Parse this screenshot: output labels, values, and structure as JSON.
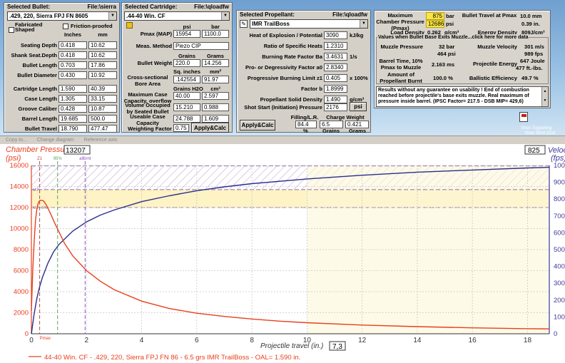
{
  "bullet": {
    "header": "Selected Bullet:",
    "file": "File:\\sierra",
    "selected": ".429, 220, Sierra FPJ FN 8605",
    "cb_fabricated": "Fabricated Shaped",
    "cb_friction": "Friction-proofed",
    "col_inches": "Inches",
    "col_mm": "mm",
    "rows": [
      {
        "label": "Seating Depth",
        "in": "0.418",
        "mm": "10.62"
      },
      {
        "label": "Shank Seat.Depth",
        "in": "0.418",
        "mm": "10.62"
      },
      {
        "label": "Bullet Length",
        "in": "0.703",
        "mm": "17.86"
      },
      {
        "label": "Bullet Diameter",
        "in": "0.430",
        "mm": "10.92"
      },
      {
        "label": "Cartridge Length",
        "in": "1.590",
        "mm": "40.39"
      },
      {
        "label": "Case Length",
        "in": "1.305",
        "mm": "33.15"
      },
      {
        "label": "Groove Caliber",
        "in": "0.428",
        "mm": "10.87"
      },
      {
        "label": "Barrel Length",
        "in": "19.685",
        "mm": "500.0"
      },
      {
        "label": "Bullet Travel",
        "in": "18.790",
        "mm": "477.47"
      }
    ]
  },
  "cartridge": {
    "header": "Selected Cartridge:",
    "file": "File:\\qloadfw",
    "selected": ".44-40 Win. CF",
    "col_psi": "psi",
    "col_bar": "bar",
    "pmax_label": "Pmax (MAP)",
    "pmax_psi": "15954",
    "pmax_bar": "1100.0",
    "meas_label": "Meas. Method",
    "meas_value": "Piezo CIP",
    "col_grains": "Grains",
    "col_grams": "Grams",
    "bw_label": "Bullet Weight",
    "bw_gr": "220.0",
    "bw_g": "14.256",
    "col_sqin": "Sq. inches",
    "col_mm2": "mm²",
    "bore_label": "Cross-sectional Bore Area",
    "bore_sqin": ".142554",
    "bore_mm2": "91.97",
    "col_grh2o": "Grains H2O",
    "col_cm3": "cm³",
    "maxcase_label": "Maximum Case Capacity, overflow",
    "maxcase_gr": "40.00",
    "maxcase_cm3": "2.597",
    "vol_label": "Volume Occupied by Seated Bullet",
    "vol_gr": "15.210",
    "vol_cm3": "0.988",
    "useable_label": "Useable Case Capacity",
    "useable_gr": "24.788",
    "useable_cm3": "1.609",
    "wf_label": "Weighting Factor",
    "wf_value": "0.75",
    "apply_label": "Apply&Calc"
  },
  "propellant": {
    "header": "Selected Propellant:",
    "file": "File:\\qloadfw",
    "selected": "IMR TrailBoss",
    "rows": [
      {
        "label": "Heat of Explosion / Potential",
        "value": "3090",
        "unit": "kJ/kg"
      },
      {
        "label": "Ratio of Specific Heats",
        "value": "1.2310",
        "unit": ""
      },
      {
        "label": "Burning Rate Factor  Ba",
        "value": "3.4631",
        "unit": "1/s"
      },
      {
        "label": "Pro- or Degressivity Factor  a0",
        "value": "2.8340",
        "unit": ""
      },
      {
        "label": "Progressive Burning Limit z1",
        "value": "0.405",
        "unit": "x 100%"
      },
      {
        "label": "Factor  b",
        "value": "1.8999",
        "unit": ""
      },
      {
        "label": "Propellant Solid Density",
        "value": "1.490",
        "unit": "g/cm³"
      }
    ],
    "shot_label": "Shot Start (Initiation) Pressure",
    "shot_value": "2176",
    "shot_unit": "psi",
    "filling_label": "Filling/L.R.",
    "charge_label": "Charge Weight",
    "filling_value": "84.4",
    "charge_gr": "6.5",
    "charge_g": "0.421",
    "pct": "%",
    "grains": "Grains",
    "grams": "Grams",
    "apply_label": "Apply&Calc"
  },
  "results": {
    "pmax_label": "Maximum Chamber Pressure (Pmax)",
    "pmax_bar": "875",
    "pmax_bar_unit": "bar",
    "pmax_psi": "12686",
    "pmax_psi_unit": "psi",
    "travel_label": "Bullet Travel at Pmax",
    "travel_mm": "10.0 mm",
    "travel_in": "0.39 in.",
    "load_label": "Load Density",
    "load_value": "0.262",
    "load_unit": "g/cm³",
    "energy_label": "Energy Density",
    "energy_value": "809J/cm³",
    "section_title": "Values when Bullet Base Exits Muzzle...click here for more data",
    "mp_label": "Muzzle Pressure",
    "mp_bar": "32 bar",
    "mp_psi": "464 psi",
    "mv_label": "Muzzle Velocity",
    "mv_ms": "301 m/s",
    "mv_fps": "989 fps",
    "bt_label": "Barrel Time, 10% Pmax to Muzzle",
    "bt_value": "2.163 ms",
    "pe_label": "Projectile Energy",
    "pe_j": "647 Joule",
    "pe_ftlb": "477 ft.-lbs.",
    "ap_label": "Amount of Propellant Burnt",
    "ap_value": "100.0 %",
    "be_label": "Ballistic Efficiency",
    "be_value": "49.7 %",
    "note": "Results without any guarantee on usability !  End of combustion reached before projectile's base exits muzzle.  Real maximum of pressure inside barrel.  (IPSC Factor= 217.5 - DSB MIP= 429,6)",
    "status_line1": "Shot-Toppeling",
    "status_line2": "Now Shot Grid"
  },
  "toolbar": {
    "copy": "Copy to...",
    "change": "Change diagram",
    "ref": "Reference axis"
  },
  "chart_data": {
    "type": "line",
    "left_axis_label": "Chamber Pressure",
    "left_unit": "(psi)",
    "left_readout": "13207",
    "right_axis_label": "Velocity",
    "right_unit": "(fps)",
    "right_readout": "825",
    "xlabel": "Projectile travel (in.)",
    "x_readout": "7,3",
    "xlim": [
      0,
      18.79
    ],
    "ylim_left": [
      0,
      16000
    ],
    "ylim_right": [
      0,
      1000
    ],
    "x_ticks": [
      0,
      2,
      4,
      6,
      8,
      10,
      12,
      14,
      16,
      18
    ],
    "yl_ticks": [
      0,
      2000,
      4000,
      6000,
      8000,
      10000,
      12000,
      14000,
      16000
    ],
    "yr_ticks": [
      0,
      100,
      200,
      300,
      400,
      500,
      600,
      700,
      800,
      900,
      1000
    ],
    "pmax_line_psi": 15954,
    "pmax_tol_psi": 13700,
    "band_low_psi": 12000,
    "band_high_psi": 13700,
    "markers": [
      {
        "label": "Z1",
        "x": 0.3,
        "color": "#b05050"
      },
      {
        "label": "95%",
        "x": 0.95,
        "color": "#58a858"
      },
      {
        "label": "allbrnt",
        "x": 1.95,
        "color": "#9050c0"
      }
    ],
    "pmax_marker": "Pmax",
    "small_lbl_top": "M.P.",
    "small_lbl_mid": "M.P.-5%",
    "pressure": {
      "x": [
        0,
        0.05,
        0.1,
        0.15,
        0.2,
        0.25,
        0.3,
        0.35,
        0.39,
        0.45,
        0.55,
        0.7,
        0.85,
        1.0,
        1.2,
        1.5,
        2.0,
        2.5,
        3.0,
        4.0,
        5.0,
        6.0,
        7.0,
        8.0,
        9.0,
        10.0,
        12.0,
        14.0,
        16.0,
        18.0,
        18.79
      ],
      "y": [
        2176,
        6000,
        8800,
        10800,
        11900,
        12450,
        12650,
        12685,
        12686,
        12600,
        12200,
        11400,
        10500,
        9700,
        8600,
        7400,
        6000,
        5000,
        4200,
        3100,
        2400,
        1950,
        1650,
        1400,
        1200,
        1050,
        830,
        680,
        560,
        480,
        464
      ]
    },
    "velocity": {
      "x": [
        0,
        0.1,
        0.2,
        0.3,
        0.4,
        0.6,
        0.8,
        1.0,
        1.5,
        2.0,
        2.5,
        3.0,
        4.0,
        5.0,
        6.0,
        7.0,
        8.0,
        10.0,
        12.0,
        14.0,
        16.0,
        18.0,
        18.79
      ],
      "y": [
        0,
        120,
        210,
        280,
        335,
        420,
        485,
        530,
        610,
        665,
        705,
        735,
        785,
        820,
        850,
        873,
        892,
        920,
        942,
        960,
        973,
        985,
        989
      ]
    },
    "legend": "44-40 Win. CF - .429, 220, Sierra FPJ FN 86 - 6.5 grs IMR TrailBoss - OAL= 1.590 in.",
    "colors": {
      "pressure": "#e8401c",
      "velocity": "#2a2e8c",
      "band": "#fdf3c4",
      "hatch": "#b8a0c8",
      "left_axis": "#e84020",
      "right_axis": "#3a3a9a"
    }
  }
}
